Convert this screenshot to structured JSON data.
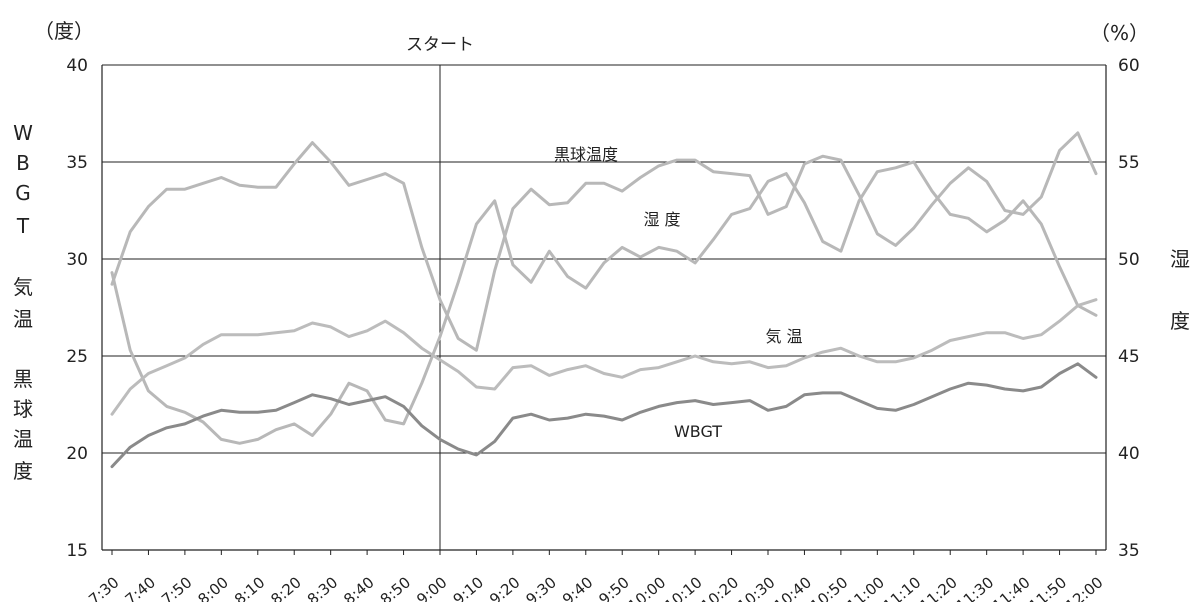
{
  "chart_data": {
    "type": "line",
    "left_unit": "（度）",
    "right_unit": "（%）",
    "left_axis_label": [
      "W",
      "B",
      "G",
      "T",
      "",
      "気",
      "温",
      "",
      "黒",
      "球",
      "温",
      "度"
    ],
    "right_axis_label": [
      "湿",
      "度"
    ],
    "ylim_left": [
      15,
      40
    ],
    "ylim_right": [
      35,
      60
    ],
    "yticks_left": [
      "15",
      "20",
      "25",
      "30",
      "35",
      "40"
    ],
    "yticks_right": [
      "35",
      "40",
      "45",
      "50",
      "55",
      "60"
    ],
    "grid": "horizontal",
    "start_marker": {
      "label": "スタート",
      "x": "9:00"
    },
    "x": [
      "7:30",
      "7:35",
      "7:40",
      "7:45",
      "7:50",
      "7:55",
      "8:00",
      "8:05",
      "8:10",
      "8:15",
      "8:20",
      "8:25",
      "8:30",
      "8:35",
      "8:40",
      "8:45",
      "8:50",
      "8:55",
      "9:00",
      "9:05",
      "9:10",
      "9:15",
      "9:20",
      "9:25",
      "9:30",
      "9:35",
      "9:40",
      "9:45",
      "9:50",
      "9:55",
      "10:00",
      "10:05",
      "10:10",
      "10:15",
      "10:20",
      "10:25",
      "10:30",
      "10:35",
      "10:40",
      "10:45",
      "10:50",
      "10:55",
      "11:00",
      "11:05",
      "11:10",
      "11:15",
      "11:20",
      "11:25",
      "11:30",
      "11:35",
      "11:40",
      "11:45",
      "11:50",
      "11:55",
      "12:00"
    ],
    "xtick_labels": [
      "7:30",
      "7:40",
      "7:50",
      "8:00",
      "8:10",
      "8:20",
      "8:30",
      "8:40",
      "8:50",
      "9:00",
      "9:10",
      "9:20",
      "9:30",
      "9:40",
      "9:50",
      "10:00",
      "10:10",
      "10:20",
      "10:30",
      "10:40",
      "10:50",
      "11:00",
      "11:10",
      "11:20",
      "11:30",
      "11:40",
      "11:50",
      "12:00"
    ],
    "series": [
      {
        "name": "黒球温度",
        "axis": "left",
        "color": "#b8b8b8",
        "values": [
          28.7,
          31.4,
          32.7,
          33.6,
          33.6,
          33.9,
          34.2,
          33.8,
          33.7,
          33.7,
          34.9,
          36.0,
          35.0,
          33.8,
          34.1,
          34.4,
          33.9,
          30.6,
          27.9,
          25.9,
          25.3,
          29.4,
          32.6,
          33.6,
          32.8,
          32.9,
          33.9,
          33.9,
          33.5,
          34.2,
          34.8,
          35.1,
          35.1,
          34.5,
          34.4,
          34.3,
          32.3,
          32.7,
          34.9,
          35.3,
          35.1,
          33.3,
          31.3,
          30.7,
          31.6,
          32.8,
          33.9,
          34.7,
          34.0,
          32.5,
          32.3,
          33.2,
          35.6,
          36.5,
          34.4
        ]
      },
      {
        "name": "湿 度",
        "axis": "right",
        "color": "#b8b8b8",
        "values": [
          49.3,
          45.3,
          43.2,
          42.4,
          42.1,
          41.6,
          40.7,
          40.5,
          40.7,
          41.2,
          41.5,
          40.9,
          42.0,
          43.6,
          43.2,
          41.7,
          41.5,
          43.6,
          46.0,
          48.8,
          51.8,
          53.0,
          49.7,
          48.8,
          50.4,
          49.1,
          48.5,
          49.8,
          50.6,
          50.1,
          50.6,
          50.4,
          49.8,
          51.0,
          52.3,
          52.6,
          54.0,
          54.4,
          52.9,
          50.9,
          50.4,
          53.0,
          54.5,
          54.7,
          55.0,
          53.5,
          52.3,
          52.1,
          51.4,
          52.0,
          53.0,
          51.8,
          49.6,
          47.6,
          47.1
        ]
      },
      {
        "name": "気 温",
        "axis": "left",
        "color": "#bcbcbc",
        "values": [
          22.0,
          23.3,
          24.1,
          24.5,
          24.9,
          25.6,
          26.1,
          26.1,
          26.1,
          26.2,
          26.3,
          26.7,
          26.5,
          26.0,
          26.3,
          26.8,
          26.2,
          25.4,
          24.8,
          24.2,
          23.4,
          23.3,
          24.4,
          24.5,
          24.0,
          24.3,
          24.5,
          24.1,
          23.9,
          24.3,
          24.4,
          24.7,
          25.0,
          24.7,
          24.6,
          24.7,
          24.4,
          24.5,
          24.9,
          25.2,
          25.4,
          25.0,
          24.7,
          24.7,
          24.9,
          25.3,
          25.8,
          26.0,
          26.2,
          26.2,
          25.9,
          26.1,
          26.8,
          27.6,
          27.9
        ]
      },
      {
        "name": "WBGT",
        "axis": "left",
        "color": "#8a8a8a",
        "values": [
          19.3,
          20.3,
          20.9,
          21.3,
          21.5,
          21.9,
          22.2,
          22.1,
          22.1,
          22.2,
          22.6,
          23.0,
          22.8,
          22.5,
          22.7,
          22.9,
          22.4,
          21.4,
          20.7,
          20.2,
          19.9,
          20.6,
          21.8,
          22.0,
          21.7,
          21.8,
          22.0,
          21.9,
          21.7,
          22.1,
          22.4,
          22.6,
          22.7,
          22.5,
          22.6,
          22.7,
          22.2,
          22.4,
          23.0,
          23.1,
          23.1,
          22.7,
          22.3,
          22.2,
          22.5,
          22.9,
          23.3,
          23.6,
          23.5,
          23.3,
          23.2,
          23.4,
          24.1,
          24.6,
          23.9
        ]
      }
    ]
  }
}
